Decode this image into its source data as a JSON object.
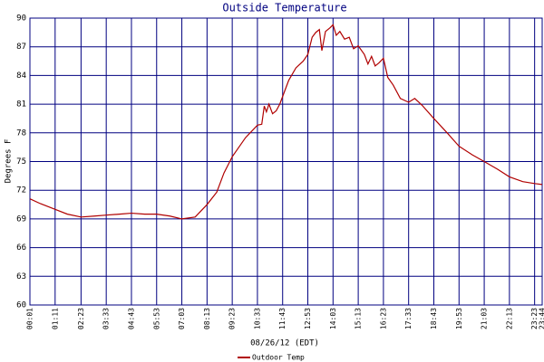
{
  "chart_data": {
    "type": "line",
    "title": "Outside Temperature",
    "y_label": "Degrees F",
    "x_label": "08/26/12 (EDT)",
    "x": [
      1,
      30,
      71,
      105,
      143,
      180,
      213,
      250,
      283,
      320,
      353,
      390,
      423,
      460,
      493,
      520,
      540,
      563,
      600,
      633,
      645,
      652,
      658,
      665,
      675,
      685,
      695,
      703,
      720,
      740,
      760,
      773,
      785,
      795,
      805,
      812,
      822,
      835,
      843,
      852,
      862,
      875,
      888,
      900,
      913,
      930,
      940,
      950,
      960,
      970,
      983,
      995,
      1010,
      1030,
      1053,
      1070,
      1090,
      1123,
      1160,
      1193,
      1230,
      1263,
      1300,
      1333,
      1370,
      1403,
      1424
    ],
    "series": [
      {
        "name": "Outdoor Temp",
        "color": "#b00000",
        "values": [
          71.1,
          70.6,
          70.0,
          69.5,
          69.2,
          69.3,
          69.4,
          69.5,
          69.6,
          69.5,
          69.5,
          69.3,
          69.0,
          69.2,
          70.5,
          71.8,
          73.8,
          75.5,
          77.5,
          78.8,
          78.9,
          80.8,
          80.2,
          81.0,
          80.0,
          80.3,
          81.0,
          81.8,
          83.5,
          84.8,
          85.5,
          86.2,
          88.0,
          88.5,
          88.8,
          86.6,
          88.6,
          89.0,
          89.3,
          88.2,
          88.6,
          87.8,
          88.0,
          86.8,
          87.1,
          86.2,
          85.2,
          86.0,
          85.0,
          85.3,
          85.8,
          83.8,
          83.0,
          81.6,
          81.2,
          81.6,
          80.9,
          79.5,
          78.0,
          76.6,
          75.7,
          75.0,
          74.2,
          73.4,
          72.9,
          72.7,
          72.6
        ]
      }
    ],
    "xlim": [
      1,
      1424
    ],
    "xticks": [
      {
        "value": 1,
        "label": "00:01"
      },
      {
        "value": 71,
        "label": "01:11"
      },
      {
        "value": 143,
        "label": "02:23"
      },
      {
        "value": 213,
        "label": "03:33"
      },
      {
        "value": 283,
        "label": "04:43"
      },
      {
        "value": 353,
        "label": "05:53"
      },
      {
        "value": 423,
        "label": "07:03"
      },
      {
        "value": 493,
        "label": "08:13"
      },
      {
        "value": 563,
        "label": "09:23"
      },
      {
        "value": 633,
        "label": "10:33"
      },
      {
        "value": 703,
        "label": "11:43"
      },
      {
        "value": 773,
        "label": "12:53"
      },
      {
        "value": 843,
        "label": "14:03"
      },
      {
        "value": 913,
        "label": "15:13"
      },
      {
        "value": 983,
        "label": "16:23"
      },
      {
        "value": 1053,
        "label": "17:33"
      },
      {
        "value": 1123,
        "label": "18:43"
      },
      {
        "value": 1193,
        "label": "19:53"
      },
      {
        "value": 1263,
        "label": "21:03"
      },
      {
        "value": 1333,
        "label": "22:13"
      },
      {
        "value": 1403,
        "label": "23:23"
      },
      {
        "value": 1424,
        "label": "23:44"
      }
    ],
    "ylim": [
      60,
      90
    ],
    "yticks": [
      60,
      63,
      66,
      69,
      72,
      75,
      78,
      81,
      84,
      87,
      90
    ],
    "grid": true,
    "grid_color": "#000080"
  }
}
